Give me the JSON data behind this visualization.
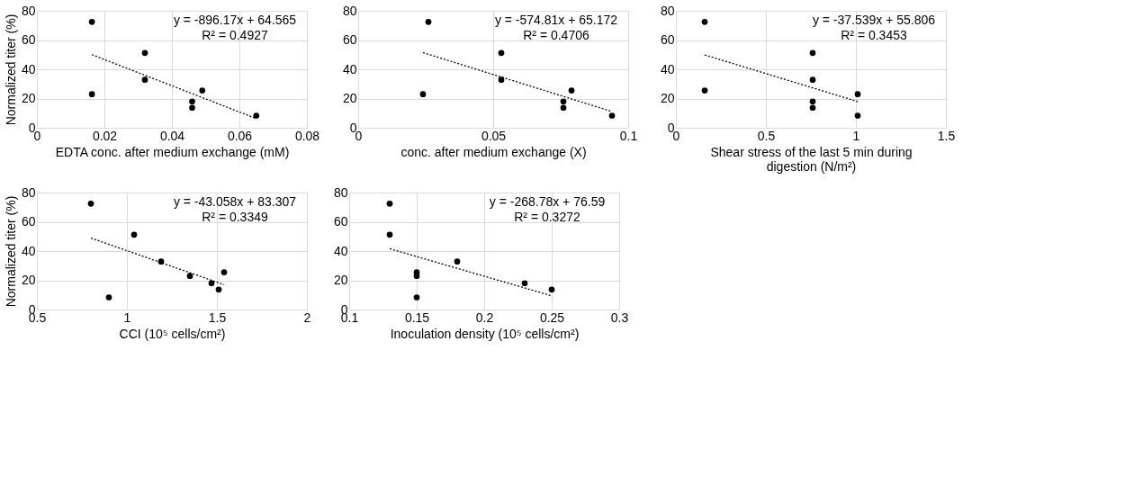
{
  "chart_data": [
    {
      "type": "scatter",
      "xlabel": "EDTA conc. after medium exchange (mM)",
      "ylabel": "Normalized titer (%)",
      "xlim": [
        0,
        0.08
      ],
      "xticks": [
        0,
        0.02,
        0.04,
        0.06,
        0.08
      ],
      "ylim": [
        0,
        80
      ],
      "yticks": [
        0,
        20,
        40,
        60,
        80
      ],
      "grid": true,
      "annotations": [
        "y = -896.17x + 64.565",
        "R² = 0.4927"
      ],
      "series": [
        {
          "marker": "circle",
          "color": "#000000",
          "x": [
            0.0163,
            0.0163,
            0.032,
            0.032,
            0.046,
            0.046,
            0.049,
            0.065
          ],
          "values": [
            72.4,
            23,
            51.2,
            32.8,
            18,
            13.7,
            25.5,
            8.3
          ]
        },
        {
          "type": "line",
          "color": "#000000",
          "line_style": "dotted",
          "x": [
            0.0163,
            0.065
          ],
          "values": [
            50,
            6.3
          ]
        }
      ]
    },
    {
      "type": "scatter",
      "xlabel": "conc. after medium exchange (X)",
      "xlim": [
        0,
        0.1
      ],
      "xticks": [
        0,
        0.05,
        0.1
      ],
      "ylim": [
        0,
        80
      ],
      "yticks": [
        0,
        20,
        40,
        60,
        80
      ],
      "grid": true,
      "annotations": [
        "y = -574.81x + 65.172",
        "R² = 0.4706"
      ],
      "series": [
        {
          "marker": "circle",
          "color": "#000000",
          "x": [
            0.026,
            0.024,
            0.053,
            0.053,
            0.076,
            0.076,
            0.079,
            0.094
          ],
          "values": [
            72.4,
            23,
            51.2,
            32.8,
            18,
            13.7,
            25.5,
            8.3
          ]
        },
        {
          "type": "line",
          "color": "#000000",
          "line_style": "dotted",
          "x": [
            0.024,
            0.094
          ],
          "values": [
            51.4,
            11.1
          ]
        }
      ]
    },
    {
      "type": "scatter",
      "xlabel": "Shear stress of the last 5 min during digestion (N/m²)",
      "xlim": [
        0,
        1.5
      ],
      "xticks": [
        0,
        0.5,
        1,
        1.5
      ],
      "ylim": [
        0,
        80
      ],
      "yticks": [
        0,
        20,
        40,
        60,
        80
      ],
      "grid": true,
      "annotations": [
        "y = -37.539x + 55.806",
        "R² = 0.3453"
      ],
      "series": [
        {
          "marker": "circle",
          "color": "#000000",
          "x": [
            0.16,
            0.16,
            0.76,
            0.76,
            0.76,
            0.76,
            1.01,
            1.01
          ],
          "values": [
            72.4,
            25.5,
            51.2,
            32.8,
            18,
            13.7,
            23,
            8.3
          ]
        },
        {
          "type": "line",
          "color": "#000000",
          "line_style": "dotted",
          "x": [
            0.16,
            1.01
          ],
          "values": [
            49.8,
            17.9
          ]
        }
      ]
    },
    {
      "type": "scatter",
      "xlabel": "CCI (10⁵ cells/cm²)",
      "ylabel": "Normalized titer (%)",
      "xlim": [
        0.5,
        2
      ],
      "xticks": [
        0.5,
        1,
        1.5,
        2
      ],
      "ylim": [
        0,
        80
      ],
      "yticks": [
        0,
        20,
        40,
        60,
        80
      ],
      "grid": true,
      "annotations": [
        "y = -43.058x + 83.307",
        "R² = 0.3349"
      ],
      "series": [
        {
          "marker": "circle",
          "color": "#000000",
          "x": [
            0.8,
            1.04,
            1.19,
            1.35,
            1.47,
            1.51,
            1.54,
            0.9
          ],
          "values": [
            72.4,
            51.2,
            32.8,
            23,
            18,
            13.7,
            25.5,
            8.3
          ]
        },
        {
          "type": "line",
          "color": "#000000",
          "line_style": "dotted",
          "x": [
            0.8,
            1.54
          ],
          "values": [
            48.9,
            17
          ]
        }
      ]
    },
    {
      "type": "scatter",
      "xlabel": "Inoculation density (10⁵ cells/cm²)",
      "xlim": [
        0.1,
        0.3
      ],
      "xticks": [
        0.1,
        0.15,
        0.2,
        0.25,
        0.3
      ],
      "ylim": [
        0,
        80
      ],
      "yticks": [
        0,
        20,
        40,
        60,
        80
      ],
      "grid": true,
      "annotations": [
        "y = -268.78x + 76.59",
        "R² = 0.3272"
      ],
      "series": [
        {
          "marker": "circle",
          "color": "#000000",
          "x": [
            0.13,
            0.13,
            0.18,
            0.15,
            0.15,
            0.15,
            0.23,
            0.25
          ],
          "values": [
            72.4,
            51.2,
            32.8,
            25.5,
            23,
            8.3,
            18,
            13.7
          ]
        },
        {
          "type": "line",
          "color": "#000000",
          "line_style": "dotted",
          "x": [
            0.13,
            0.25
          ],
          "values": [
            41.6,
            9.4
          ]
        }
      ]
    }
  ]
}
